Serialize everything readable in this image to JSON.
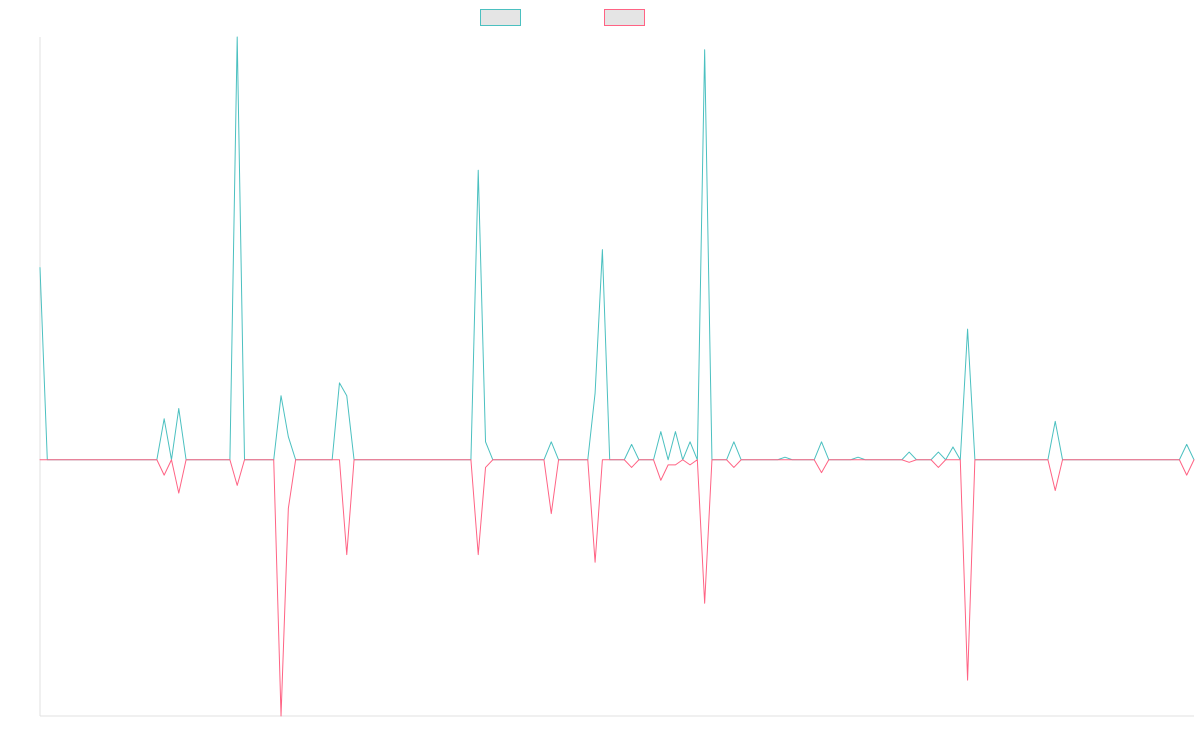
{
  "chart_data": {
    "type": "line",
    "title": "",
    "xlabel": "",
    "ylabel": "",
    "grid": false,
    "legend_position": "top-center",
    "ylim": [
      -100,
      165
    ],
    "series": [
      {
        "name": "",
        "color": "#4bc0c0",
        "legend_fill": "#e5e5e5",
        "points": [
          [
            0,
            75
          ],
          [
            1,
            0
          ],
          [
            16,
            0
          ],
          [
            17,
            16
          ],
          [
            18,
            0
          ],
          [
            19,
            20
          ],
          [
            20,
            0
          ],
          [
            26,
            0
          ],
          [
            27,
            165
          ],
          [
            28,
            0
          ],
          [
            32,
            0
          ],
          [
            33,
            25
          ],
          [
            34,
            9
          ],
          [
            35,
            0
          ],
          [
            40,
            0
          ],
          [
            41,
            30
          ],
          [
            42,
            25
          ],
          [
            43,
            0
          ],
          [
            59,
            0
          ],
          [
            60,
            113
          ],
          [
            61,
            7
          ],
          [
            62,
            0
          ],
          [
            69,
            0
          ],
          [
            70,
            7
          ],
          [
            71,
            0
          ],
          [
            75,
            0
          ],
          [
            76,
            26
          ],
          [
            77,
            82
          ],
          [
            78,
            0
          ],
          [
            80,
            0
          ],
          [
            81,
            6
          ],
          [
            82,
            0
          ],
          [
            84,
            0
          ],
          [
            85,
            11
          ],
          [
            86,
            0
          ],
          [
            87,
            11
          ],
          [
            88,
            0
          ],
          [
            89,
            7
          ],
          [
            90,
            0
          ],
          [
            91,
            160
          ],
          [
            92,
            0
          ],
          [
            94,
            0
          ],
          [
            95,
            7
          ],
          [
            96,
            0
          ],
          [
            101,
            0
          ],
          [
            102,
            1
          ],
          [
            103,
            0
          ],
          [
            106,
            0
          ],
          [
            107,
            7
          ],
          [
            108,
            0
          ],
          [
            111,
            0
          ],
          [
            112,
            1
          ],
          [
            113,
            0
          ],
          [
            118,
            0
          ],
          [
            119,
            3
          ],
          [
            120,
            0
          ],
          [
            122,
            0
          ],
          [
            123,
            3
          ],
          [
            124,
            0
          ],
          [
            125,
            5
          ],
          [
            126,
            0
          ],
          [
            127,
            51
          ],
          [
            128,
            0
          ],
          [
            138,
            0
          ],
          [
            139,
            15
          ],
          [
            140,
            0
          ],
          [
            156,
            0
          ],
          [
            157,
            6
          ],
          [
            158,
            0
          ]
        ]
      },
      {
        "name": "",
        "color": "#ff6384",
        "legend_fill": "#e5e5e5",
        "points": [
          [
            0,
            0
          ],
          [
            1,
            0
          ],
          [
            16,
            0
          ],
          [
            17,
            -6
          ],
          [
            18,
            0
          ],
          [
            19,
            -13
          ],
          [
            20,
            0
          ],
          [
            26,
            0
          ],
          [
            27,
            -10
          ],
          [
            28,
            0
          ],
          [
            32,
            0
          ],
          [
            33,
            -100
          ],
          [
            34,
            -19
          ],
          [
            35,
            0
          ],
          [
            40,
            0
          ],
          [
            41,
            0
          ],
          [
            42,
            -37
          ],
          [
            43,
            0
          ],
          [
            59,
            0
          ],
          [
            60,
            -37
          ],
          [
            61,
            -3
          ],
          [
            62,
            0
          ],
          [
            69,
            0
          ],
          [
            70,
            -21
          ],
          [
            71,
            0
          ],
          [
            75,
            0
          ],
          [
            76,
            -40
          ],
          [
            77,
            0
          ],
          [
            78,
            0
          ],
          [
            80,
            0
          ],
          [
            81,
            -3
          ],
          [
            82,
            0
          ],
          [
            84,
            0
          ],
          [
            85,
            -8
          ],
          [
            86,
            -2
          ],
          [
            87,
            -2
          ],
          [
            88,
            0
          ],
          [
            89,
            -2
          ],
          [
            90,
            0
          ],
          [
            91,
            -56
          ],
          [
            92,
            0
          ],
          [
            94,
            0
          ],
          [
            95,
            -3
          ],
          [
            96,
            0
          ],
          [
            101,
            0
          ],
          [
            102,
            0
          ],
          [
            103,
            0
          ],
          [
            106,
            0
          ],
          [
            107,
            -5
          ],
          [
            108,
            0
          ],
          [
            111,
            0
          ],
          [
            112,
            0
          ],
          [
            113,
            0
          ],
          [
            118,
            0
          ],
          [
            119,
            -1
          ],
          [
            120,
            0
          ],
          [
            122,
            0
          ],
          [
            123,
            -3
          ],
          [
            124,
            0
          ],
          [
            125,
            0
          ],
          [
            126,
            0
          ],
          [
            127,
            -86
          ],
          [
            128,
            0
          ],
          [
            138,
            0
          ],
          [
            139,
            -12
          ],
          [
            140,
            0
          ],
          [
            156,
            0
          ],
          [
            157,
            -6
          ],
          [
            158,
            0
          ]
        ]
      }
    ],
    "xlim": [
      0,
      158
    ]
  }
}
